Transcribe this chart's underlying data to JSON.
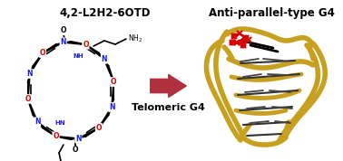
{
  "title_left": "4,2-L2H2-6OTD",
  "title_right": "Anti-parallel-type G4",
  "label_arrow": "Telomeric G4",
  "background_color": "#ffffff",
  "arrow_color": "#b03040",
  "title_fontsize": 8.5,
  "label_fontsize": 8.0,
  "fig_width": 3.78,
  "fig_height": 1.78,
  "dpi": 100,
  "blue_color": "#1a1aee",
  "red_color": "#dd0000",
  "black_color": "#000000",
  "gold_color": "#c8a020",
  "gold_dark": "#a07800"
}
